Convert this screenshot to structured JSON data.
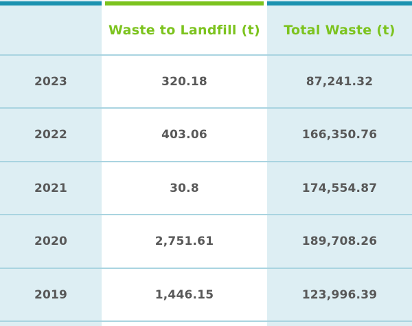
{
  "headers": {
    "year": "",
    "landfill": "Waste to Landfill (t)",
    "total": "Total Waste (t)"
  },
  "rows": [
    {
      "year": "2023",
      "landfill": "320.18",
      "total": "87,241.32"
    },
    {
      "year": "2022",
      "landfill": "403.06",
      "total": "166,350.76"
    },
    {
      "year": "2021",
      "landfill": "30.8",
      "total": "174,554.87"
    },
    {
      "year": "2020",
      "landfill": "2,751.61",
      "total": "189,708.26"
    },
    {
      "year": "2019",
      "landfill": "1,446.15",
      "total": "123,996.39"
    }
  ],
  "colors": {
    "accent_green": "#7cc31e",
    "accent_blue": "#1a92b0",
    "column_tint": "#ddeef3",
    "text": "#585858"
  }
}
